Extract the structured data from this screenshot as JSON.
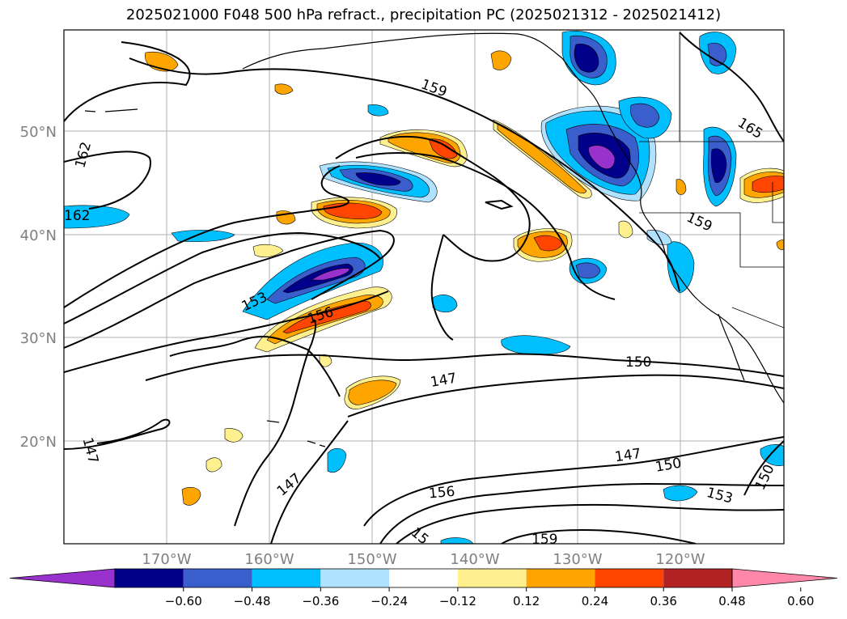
{
  "title": "2025021000 F048 500 hPa refract., precipitation PC (2025021312 - 2025021412)",
  "lat_labels": [
    "50°N",
    "40°N",
    "30°N",
    "20°N"
  ],
  "lon_labels": [
    "170°W",
    "160°W",
    "150°W",
    "140°W",
    "130°W",
    "120°W"
  ],
  "contour_labels": [
    "159",
    "165",
    "162",
    "162",
    "159",
    "153",
    "156",
    "150",
    "147",
    "147",
    "150",
    "147",
    "156",
    "153",
    "150",
    "159",
    "147",
    "15"
  ],
  "colorbar": {
    "ticks": [
      "−0.60",
      "−0.48",
      "−0.36",
      "−0.24",
      "−0.12",
      "0.12",
      "0.24",
      "0.36",
      "0.48",
      "0.60"
    ],
    "colors": [
      "#9932cc",
      "#00008b",
      "#3a5fcd",
      "#00bfff",
      "#b0e2ff",
      "#ffffff",
      "#fff08f",
      "#ffa500",
      "#ff4500",
      "#b22222",
      "#ff88aa"
    ]
  },
  "palette": {
    "purple": "#9932cc",
    "navy": "#00008b",
    "blue": "#3a5fcd",
    "cyan": "#00bfff",
    "lightblue": "#b0e2ff",
    "yellow": "#fff08f",
    "orange": "#ffa500",
    "redorange": "#ff4500",
    "firebrick": "#b22222"
  }
}
